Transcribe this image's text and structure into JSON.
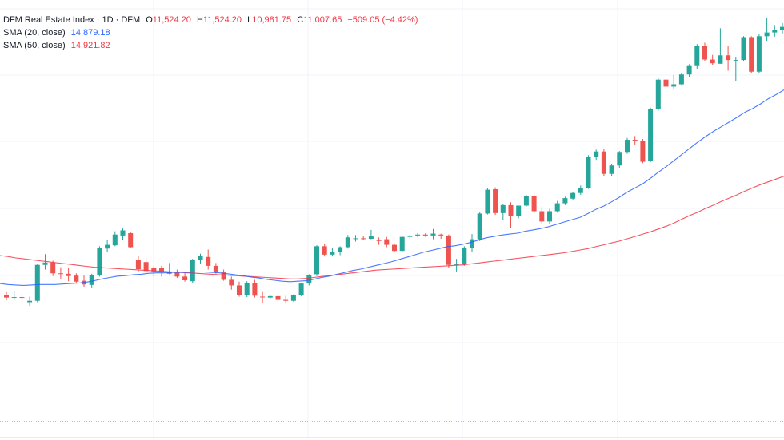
{
  "legend": {
    "symbol": "DFM Real Estate Index · 1D · DFM",
    "open_label": "O",
    "open": "11,524.20",
    "high_label": "H",
    "high": "11,524.20",
    "low_label": "L",
    "low": "10,981.75",
    "close_label": "C",
    "close": "11,007.65",
    "change": "−509.05 (−4.42%)",
    "sma20_label": "SMA (20, close)",
    "sma20_value": "14,879.18",
    "sma50_label": "SMA (50, close)",
    "sma50_value": "14,921.82"
  },
  "colors": {
    "up": "#26a69a",
    "down": "#ef5350",
    "sma20": "#2962ff",
    "sma50": "#f23645",
    "grid": "#f0f3fa",
    "baseline": "#f7a1a8"
  },
  "chart_data": {
    "type": "candlestick",
    "grid": true,
    "ylim": [
      5,
      95
    ],
    "series": [
      {
        "name": "DFM Real Estate Index",
        "ohlc": [
          [
            35.5,
            36.2,
            34.4,
            35.0
          ],
          [
            35.0,
            36.4,
            34.5,
            35.1
          ],
          [
            35.1,
            35.7,
            34.5,
            35.0
          ],
          [
            34.0,
            35.2,
            33.2,
            34.3
          ],
          [
            34.3,
            42.2,
            34.0,
            42.0
          ],
          [
            42.0,
            44.3,
            41.0,
            42.5
          ],
          [
            42.5,
            42.9,
            39.6,
            40.2
          ],
          [
            40.2,
            41.5,
            39.0,
            40.1
          ],
          [
            40.1,
            41.4,
            38.5,
            39.6
          ],
          [
            39.7,
            40.2,
            38.0,
            38.4
          ],
          [
            38.6,
            39.7,
            37.2,
            37.8
          ],
          [
            37.7,
            40.1,
            37.0,
            39.9
          ],
          [
            39.9,
            46.0,
            39.5,
            45.7
          ],
          [
            45.5,
            47.3,
            44.8,
            46.3
          ],
          [
            46.2,
            49.2,
            46.0,
            48.5
          ],
          [
            48.3,
            49.8,
            47.3,
            49.4
          ],
          [
            48.8,
            49.0,
            45.6,
            45.8
          ],
          [
            43.1,
            44.0,
            40.5,
            41.1
          ],
          [
            42.6,
            43.5,
            40.1,
            40.7
          ],
          [
            41.3,
            41.8,
            39.5,
            40.6
          ],
          [
            41.3,
            41.8,
            39.5,
            40.6
          ],
          [
            40.5,
            42.4,
            40.0,
            40.1
          ],
          [
            40.5,
            41.0,
            39.2,
            39.5
          ],
          [
            39.5,
            40.6,
            38.4,
            38.7
          ],
          [
            38.5,
            43.3,
            38.0,
            43.0
          ],
          [
            43.0,
            44.4,
            42.2,
            43.9
          ],
          [
            43.7,
            45.3,
            41.0,
            41.8
          ],
          [
            41.8,
            42.4,
            40.1,
            40.5
          ],
          [
            40.4,
            41.0,
            38.6,
            38.8
          ],
          [
            38.8,
            39.5,
            36.7,
            37.6
          ],
          [
            37.6,
            38.4,
            35.2,
            35.6
          ],
          [
            35.5,
            38.5,
            35.1,
            38.1
          ],
          [
            38.1,
            38.8,
            35.0,
            35.4
          ],
          [
            35.2,
            36.2,
            33.8,
            35.1
          ],
          [
            35.0,
            35.6,
            34.6,
            35.3
          ],
          [
            35.3,
            35.6,
            34.0,
            34.5
          ],
          [
            34.5,
            35.4,
            33.7,
            34.3
          ],
          [
            34.3,
            35.7,
            34.1,
            35.5
          ],
          [
            35.5,
            38.2,
            35.3,
            38.0
          ],
          [
            38.0,
            40.0,
            37.6,
            39.8
          ],
          [
            40.0,
            46.2,
            39.6,
            46.0
          ],
          [
            46.0,
            46.4,
            43.8,
            44.2
          ],
          [
            44.2,
            45.6,
            43.8,
            44.7
          ],
          [
            44.7,
            46.0,
            44.1,
            45.8
          ],
          [
            45.8,
            48.4,
            45.5,
            47.9
          ],
          [
            47.6,
            48.4,
            47.0,
            47.7
          ],
          [
            47.7,
            48.1,
            47.3,
            47.6
          ],
          [
            47.6,
            49.5,
            47.5,
            48.1
          ],
          [
            47.3,
            47.9,
            46.3,
            47.2
          ],
          [
            47.5,
            48.0,
            45.8,
            46.3
          ],
          [
            46.3,
            46.6,
            44.8,
            45.0
          ],
          [
            45.0,
            48.3,
            44.9,
            48.0
          ],
          [
            48.0,
            48.5,
            47.5,
            48.2
          ],
          [
            48.3,
            48.8,
            47.9,
            48.5
          ],
          [
            48.5,
            48.8,
            48.0,
            48.3
          ],
          [
            48.3,
            49.7,
            47.5,
            48.7
          ],
          [
            48.5,
            48.7,
            47.6,
            48.3
          ],
          [
            48.3,
            48.5,
            41.4,
            42.0
          ],
          [
            42.0,
            43.3,
            40.6,
            42.2
          ],
          [
            42.2,
            46.0,
            41.8,
            45.7
          ],
          [
            45.7,
            48.6,
            44.8,
            47.5
          ],
          [
            47.5,
            53.4,
            47.1,
            53.0
          ],
          [
            53.0,
            58.5,
            52.8,
            58.1
          ],
          [
            58.2,
            58.6,
            52.7,
            53.1
          ],
          [
            53.1,
            55.0,
            51.6,
            54.8
          ],
          [
            54.8,
            55.4,
            50.0,
            52.5
          ],
          [
            52.5,
            54.5,
            52.0,
            54.7
          ],
          [
            54.7,
            57.0,
            54.5,
            56.8
          ],
          [
            56.8,
            57.3,
            53.0,
            53.5
          ],
          [
            53.5,
            54.4,
            50.9,
            51.3
          ],
          [
            51.3,
            54.0,
            50.8,
            53.5
          ],
          [
            53.5,
            55.7,
            53.2,
            55.2
          ],
          [
            55.2,
            56.6,
            54.8,
            56.3
          ],
          [
            56.2,
            57.6,
            55.8,
            57.4
          ],
          [
            57.4,
            59.0,
            57.0,
            58.5
          ],
          [
            58.5,
            65.5,
            58.3,
            65.2
          ],
          [
            65.2,
            66.7,
            64.5,
            66.3
          ],
          [
            66.3,
            66.8,
            61.0,
            61.5
          ],
          [
            61.5,
            63.7,
            61.0,
            63.3
          ],
          [
            63.3,
            66.4,
            62.7,
            66.2
          ],
          [
            66.2,
            69.2,
            65.8,
            68.8
          ],
          [
            68.8,
            69.6,
            67.8,
            68.5
          ],
          [
            68.5,
            69.0,
            63.8,
            64.1
          ],
          [
            64.2,
            75.7,
            64.0,
            75.4
          ],
          [
            75.4,
            82.0,
            75.0,
            81.7
          ],
          [
            81.7,
            82.6,
            79.9,
            80.2
          ],
          [
            80.2,
            82.7,
            79.6,
            80.7
          ],
          [
            80.7,
            83.1,
            80.4,
            82.8
          ],
          [
            82.8,
            85.0,
            82.2,
            84.6
          ],
          [
            84.6,
            89.3,
            84.0,
            89.0
          ],
          [
            89.0,
            89.6,
            85.6,
            86.0
          ],
          [
            86.0,
            87.0,
            84.8,
            85.2
          ],
          [
            85.1,
            92.7,
            85.1,
            86.9
          ],
          [
            86.9,
            89.0,
            83.6,
            85.9
          ],
          [
            85.9,
            86.5,
            81.3,
            85.9
          ],
          [
            85.9,
            91.0,
            85.6,
            90.8
          ],
          [
            90.8,
            91.0,
            83.0,
            83.4
          ],
          [
            83.4,
            91.4,
            83.0,
            91.0
          ],
          [
            91.0,
            95.0,
            90.0,
            91.8
          ],
          [
            91.8,
            93.4,
            90.9,
            92.3
          ],
          [
            92.3,
            93.8,
            91.4,
            93.0
          ]
        ]
      },
      {
        "name": "SMA (20, close)",
        "values": [
          38.0,
          37.8,
          37.7,
          37.6,
          37.7,
          37.8,
          37.8,
          37.8,
          37.9,
          38.0,
          38.1,
          38.3,
          38.6,
          39.0,
          39.3,
          39.6,
          39.7,
          39.9,
          40.0,
          40.2,
          40.3,
          40.3,
          40.4,
          40.4,
          40.4,
          40.5,
          40.5,
          40.4,
          40.3,
          40.1,
          39.9,
          39.7,
          39.4,
          39.2,
          38.9,
          38.7,
          38.5,
          38.4,
          38.5,
          38.6,
          38.9,
          39.3,
          39.6,
          40.0,
          40.4,
          40.8,
          41.1,
          41.5,
          41.9,
          42.3,
          42.7,
          43.2,
          43.7,
          44.2,
          44.7,
          45.1,
          45.5,
          45.9,
          46.1,
          46.4,
          46.8,
          47.3,
          47.8,
          48.1,
          48.4,
          48.6,
          48.8,
          49.2,
          49.5,
          49.8,
          50.2,
          50.7,
          51.2,
          51.7,
          52.2,
          53.0,
          53.9,
          54.6,
          55.5,
          56.5,
          57.6,
          58.5,
          59.4,
          60.6,
          61.9,
          63.1,
          64.4,
          65.7,
          67.0,
          68.3,
          69.5,
          70.6,
          71.6,
          72.6,
          73.6,
          74.7,
          75.5,
          76.5,
          77.6,
          78.5,
          79.5
        ]
      },
      {
        "name": "SMA (50, close)",
        "values": [
          44.0,
          43.8,
          43.5,
          43.3,
          43.1,
          42.9,
          42.7,
          42.5,
          42.3,
          42.1,
          41.9,
          41.7,
          41.5,
          41.4,
          41.3,
          41.2,
          41.1,
          41.0,
          40.9,
          40.8,
          40.7,
          40.6,
          40.5,
          40.4,
          40.3,
          40.2,
          40.1,
          40.0,
          39.9,
          39.8,
          39.7,
          39.6,
          39.5,
          39.4,
          39.3,
          39.2,
          39.1,
          39.0,
          39.0,
          39.1,
          39.3,
          39.5,
          39.7,
          39.9,
          40.1,
          40.3,
          40.5,
          40.7,
          40.9,
          41.0,
          41.1,
          41.2,
          41.3,
          41.4,
          41.5,
          41.6,
          41.7,
          41.8,
          41.9,
          42.0,
          42.2,
          42.4,
          42.6,
          42.8,
          43.0,
          43.2,
          43.4,
          43.6,
          43.8,
          44.0,
          44.2,
          44.4,
          44.6,
          44.9,
          45.2,
          45.5,
          45.9,
          46.3,
          46.7,
          47.1,
          47.6,
          48.1,
          48.6,
          49.1,
          49.7,
          50.3,
          51.0,
          51.8,
          52.6,
          53.3,
          54.1,
          54.8,
          55.6,
          56.3,
          57.0,
          57.8,
          58.5,
          59.2,
          59.8,
          60.4,
          61.0
        ]
      }
    ],
    "baseline": 8.5
  }
}
